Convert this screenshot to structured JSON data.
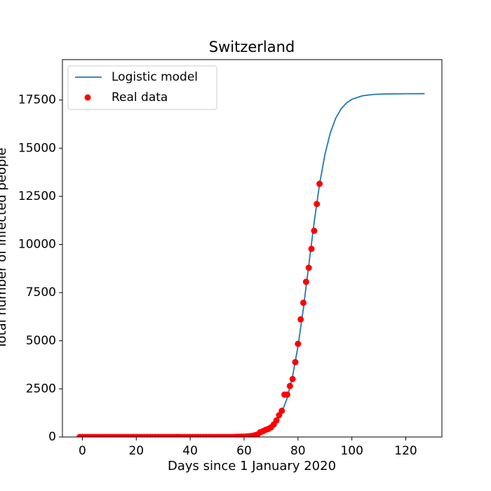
{
  "chart_data": {
    "type": "line",
    "title": "Switzerland",
    "xlabel": "Days since 1 January 2020",
    "ylabel": "Total number of infected people",
    "xlim": [
      -7.4,
      133.4
    ],
    "ylim": [
      0,
      19600
    ],
    "xticks": [
      0,
      20,
      40,
      60,
      80,
      100,
      120
    ],
    "yticks": [
      0,
      2500,
      5000,
      7500,
      10000,
      12500,
      15000,
      17500
    ],
    "legend": "upper left",
    "series": [
      {
        "name": "Logistic model",
        "type": "line",
        "color": "#1f77b4",
        "x": [
          -1,
          20,
          40,
          50,
          55,
          60,
          62,
          64,
          66,
          68,
          70,
          72,
          74,
          76,
          78,
          80,
          82,
          84,
          86,
          88,
          90,
          92,
          94,
          96,
          98,
          100,
          104,
          108,
          112,
          120,
          127
        ],
        "values": [
          0,
          0,
          0,
          3,
          10,
          38,
          63,
          105,
          175,
          290,
          479,
          785,
          1274,
          2031,
          3151,
          4705,
          6678,
          8915,
          11151,
          13128,
          14675,
          15796,
          16555,
          17044,
          17351,
          17539,
          17725,
          17793,
          17816,
          17829,
          17830
        ]
      },
      {
        "name": "Real data",
        "type": "scatter",
        "color": "#ff0000",
        "x": [
          -1,
          0,
          1,
          2,
          3,
          4,
          5,
          6,
          7,
          8,
          9,
          10,
          11,
          12,
          13,
          14,
          15,
          16,
          17,
          18,
          19,
          20,
          21,
          22,
          23,
          24,
          25,
          26,
          27,
          28,
          29,
          30,
          31,
          32,
          33,
          34,
          35,
          36,
          37,
          38,
          39,
          40,
          41,
          42,
          43,
          44,
          45,
          46,
          47,
          48,
          49,
          50,
          51,
          52,
          53,
          54,
          55,
          56,
          57,
          58,
          59,
          60,
          61,
          62,
          63,
          64,
          65,
          66,
          67,
          68,
          69,
          70,
          71,
          72,
          73,
          74,
          75,
          76,
          77,
          78,
          79,
          80,
          81,
          82,
          83,
          84,
          85,
          86,
          87,
          88
        ],
        "values": [
          0,
          0,
          0,
          0,
          0,
          0,
          0,
          0,
          0,
          0,
          0,
          0,
          0,
          0,
          0,
          0,
          0,
          0,
          0,
          0,
          0,
          0,
          0,
          0,
          0,
          0,
          0,
          0,
          0,
          0,
          0,
          0,
          0,
          0,
          0,
          0,
          0,
          0,
          0,
          0,
          0,
          0,
          0,
          0,
          0,
          0,
          0,
          0,
          0,
          0,
          0,
          0,
          0,
          0,
          0,
          0,
          1,
          1,
          8,
          15,
          20,
          20,
          30,
          40,
          60,
          90,
          130,
          250,
          300,
          370,
          420,
          500,
          650,
          860,
          1130,
          1360,
          2200,
          2200,
          2650,
          3010,
          3890,
          4840,
          6110,
          6970,
          8060,
          8790,
          9770,
          10710,
          12100,
          13150
        ]
      }
    ]
  }
}
